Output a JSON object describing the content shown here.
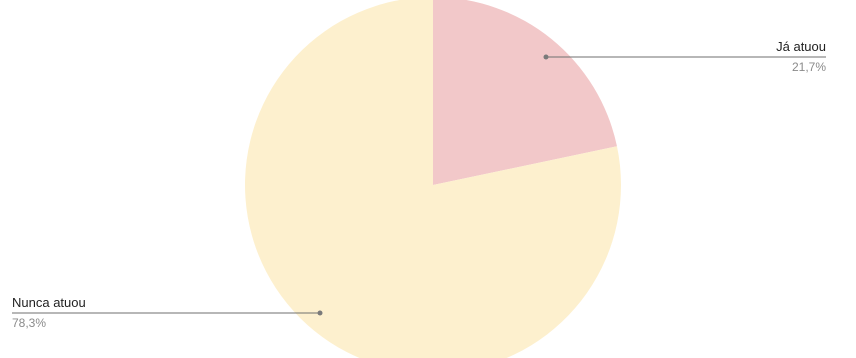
{
  "chart_data": {
    "type": "pie",
    "slices": [
      {
        "label": "Já atuou",
        "value": 21.7,
        "percent_label": "21,7%",
        "color": "#f2c8c9"
      },
      {
        "label": "Nunca atuou",
        "value": 78.3,
        "percent_label": "78,3%",
        "color": "#fdf0ce"
      }
    ],
    "start_angle": "12 o'clock",
    "direction": "clockwise",
    "legend": "none"
  }
}
